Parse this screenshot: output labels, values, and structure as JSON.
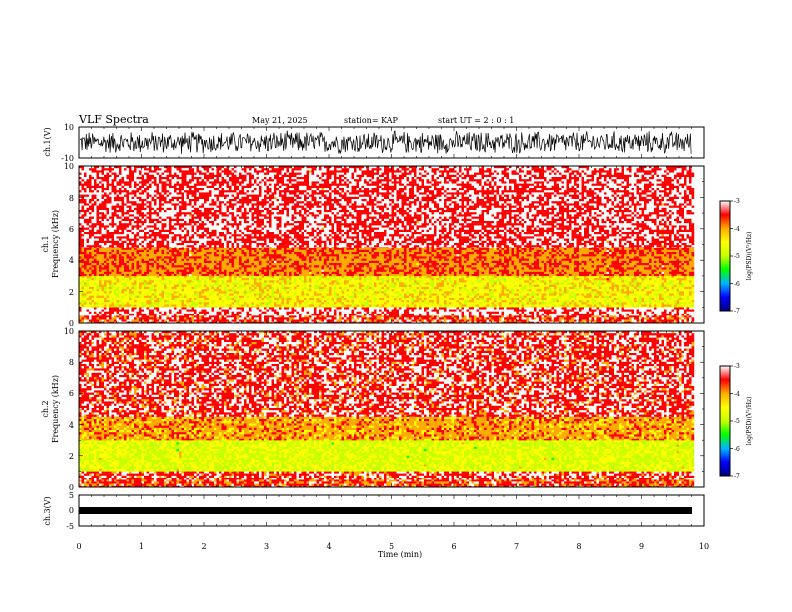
{
  "header": {
    "title": "VLF Spectra",
    "date": "May 21, 2025",
    "station": "station= KAP",
    "start": "start  UT =   2 : 0  : 1"
  },
  "colors": {
    "waveform": "#000000",
    "background": "#ffffff",
    "spectrogram_scale": [
      "#00007f",
      "#0000ff",
      "#00b4ff",
      "#00ff00",
      "#c8ff00",
      "#ffff00",
      "#ffaa00",
      "#ff0000",
      "#ffffff"
    ]
  },
  "chart_data": [
    {
      "type": "line",
      "id": "ch1-waveform",
      "ylabel": "ch.1(V)",
      "ylim": [
        -10,
        10
      ],
      "yticks": [
        "10",
        "-10"
      ],
      "xlim": [
        0,
        10
      ],
      "description_values": {
        "envelope_min": -8,
        "envelope_max": 8,
        "mean": 0
      }
    },
    {
      "type": "heatmap",
      "id": "ch1-spectrogram",
      "ylabel": "Frequency (kHz)",
      "channel_label": "ch.1",
      "ylim": [
        0,
        10
      ],
      "yticks": [
        "0",
        "2",
        "4",
        "6",
        "8",
        "10"
      ],
      "xlim": [
        0,
        10
      ],
      "data_end_min": 9.8,
      "colorbar": {
        "label": "log(PSD)(V²/Hz)",
        "range": [
          -7,
          -3
        ],
        "ticks": [
          "-3",
          "-4",
          "-5",
          "-6",
          "-7"
        ]
      },
      "bands": [
        {
          "f_low": 0.0,
          "f_high": 0.5,
          "log_psd": -3.5
        },
        {
          "f_low": 0.5,
          "f_high": 1.0,
          "log_psd": -3.2
        },
        {
          "f_low": 1.0,
          "f_high": 3.0,
          "log_psd": -4.5
        },
        {
          "f_low": 3.0,
          "f_high": 4.8,
          "log_psd": -3.8
        },
        {
          "f_low": 4.8,
          "f_high": 10.0,
          "log_psd": -3.3
        }
      ]
    },
    {
      "type": "heatmap",
      "id": "ch2-spectrogram",
      "ylabel": "Frequency (kHz)",
      "channel_label": "ch.2",
      "ylim": [
        0,
        10
      ],
      "yticks": [
        "0",
        "2",
        "4",
        "6",
        "8",
        "10"
      ],
      "xlim": [
        0,
        10
      ],
      "data_end_min": 9.8,
      "colorbar": {
        "label": "log(PSD)(V²/Hz)",
        "range": [
          -7,
          -3
        ],
        "ticks": [
          "-3",
          "-4",
          "-5",
          "-6",
          "-7"
        ]
      },
      "bands": [
        {
          "f_low": 0.0,
          "f_high": 0.5,
          "log_psd": -3.6
        },
        {
          "f_low": 0.5,
          "f_high": 1.0,
          "log_psd": -3.4
        },
        {
          "f_low": 1.0,
          "f_high": 3.0,
          "log_psd": -4.8
        },
        {
          "f_low": 3.0,
          "f_high": 4.5,
          "log_psd": -4.0
        },
        {
          "f_low": 4.5,
          "f_high": 10.0,
          "log_psd": -3.4
        }
      ]
    },
    {
      "type": "line",
      "id": "ch3-waveform",
      "ylabel": "ch.3(V)",
      "ylim": [
        -5,
        5
      ],
      "yticks": [
        "5",
        "0",
        "-5"
      ],
      "xlim": [
        0,
        10
      ],
      "description_values": {
        "envelope_min": -1.5,
        "envelope_max": -0.5
      }
    }
  ],
  "xaxis": {
    "label": "Time (min)",
    "ticks": [
      "0",
      "1",
      "2",
      "3",
      "4",
      "5",
      "6",
      "7",
      "8",
      "9",
      "10"
    ]
  }
}
